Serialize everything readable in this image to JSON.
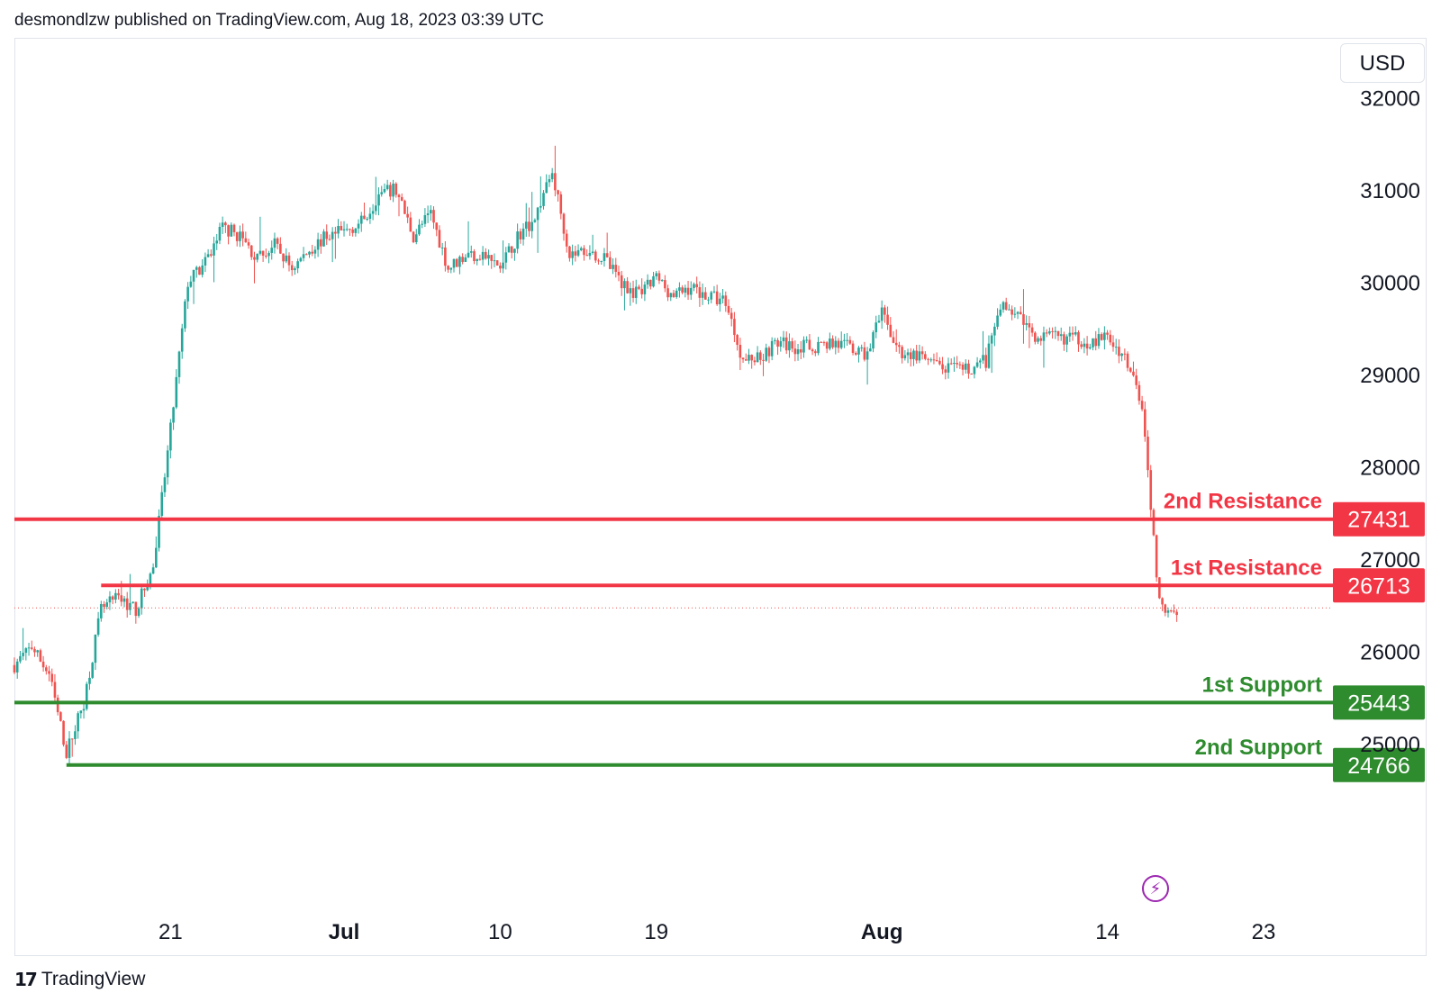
{
  "header": {
    "publisher_line": "desmondlzw published on TradingView.com, Aug 18, 2023 03:39 UTC"
  },
  "currency_button": "USD",
  "footer": {
    "logo_glyph": "17",
    "brand": "TradingView"
  },
  "bolt_glyph": "⚡",
  "colors": {
    "up": "#26a69a",
    "down": "#ef5350",
    "resistance": "#f23645",
    "support": "#2e8b2e",
    "grid": "#e0e3eb"
  },
  "chart_data": {
    "type": "candlestick",
    "title": "",
    "xlabel": "",
    "ylabel": "",
    "ylim": [
      23300,
      32650
    ],
    "y_ticks": [
      25000,
      26000,
      27000,
      28000,
      29000,
      30000,
      31000,
      32000
    ],
    "x_ticks": [
      {
        "label": "21",
        "date": "2023-06-21",
        "bold": false
      },
      {
        "label": "Jul",
        "date": "2023-07-01",
        "bold": true
      },
      {
        "label": "10",
        "date": "2023-07-10",
        "bold": false
      },
      {
        "label": "19",
        "date": "2023-07-19",
        "bold": false
      },
      {
        "label": "Aug",
        "date": "2023-08-01",
        "bold": true
      },
      {
        "label": "14",
        "date": "2023-08-14",
        "bold": false
      },
      {
        "label": "23",
        "date": "2023-08-23",
        "bold": false
      }
    ],
    "x_range": [
      "2023-06-12",
      "2023-08-27"
    ],
    "levels": [
      {
        "label": "2nd Resistance",
        "value": 27431,
        "kind": "resistance",
        "start": "2023-06-12"
      },
      {
        "label": "1st Resistance",
        "value": 26713,
        "kind": "resistance",
        "start": "2023-06-17"
      },
      {
        "label": "1st Support",
        "value": 25443,
        "kind": "support",
        "start": "2023-06-12"
      },
      {
        "label": "2nd Support",
        "value": 24766,
        "kind": "support",
        "start": "2023-06-15"
      }
    ],
    "current_price": 26470,
    "price_path": [
      [
        "2023-06-12",
        25850
      ],
      [
        "2023-06-13",
        26050
      ],
      [
        "2023-06-14",
        25750
      ],
      [
        "2023-06-15",
        24900
      ],
      [
        "2023-06-16",
        25450
      ],
      [
        "2023-06-17",
        26450
      ],
      [
        "2023-06-18",
        26580
      ],
      [
        "2023-06-19",
        26450
      ],
      [
        "2023-06-20",
        26900
      ],
      [
        "2023-06-21",
        28400
      ],
      [
        "2023-06-22",
        30000
      ],
      [
        "2023-06-23",
        30200
      ],
      [
        "2023-06-24",
        30600
      ],
      [
        "2023-06-25",
        30500
      ],
      [
        "2023-06-26",
        30250
      ],
      [
        "2023-06-27",
        30400
      ],
      [
        "2023-06-28",
        30150
      ],
      [
        "2023-06-29",
        30350
      ],
      [
        "2023-06-30",
        30500
      ],
      [
        "2023-07-01",
        30550
      ],
      [
        "2023-07-02",
        30650
      ],
      [
        "2023-07-03",
        30950
      ],
      [
        "2023-07-04",
        31000
      ],
      [
        "2023-07-05",
        30500
      ],
      [
        "2023-07-06",
        30750
      ],
      [
        "2023-07-07",
        30150
      ],
      [
        "2023-07-08",
        30300
      ],
      [
        "2023-07-09",
        30300
      ],
      [
        "2023-07-10",
        30150
      ],
      [
        "2023-07-11",
        30500
      ],
      [
        "2023-07-12",
        30700
      ],
      [
        "2023-07-13",
        31200
      ],
      [
        "2023-07-14",
        30300
      ],
      [
        "2023-07-15",
        30350
      ],
      [
        "2023-07-16",
        30250
      ],
      [
        "2023-07-17",
        30000
      ],
      [
        "2023-07-18",
        29850
      ],
      [
        "2023-07-19",
        30050
      ],
      [
        "2023-07-20",
        29850
      ],
      [
        "2023-07-21",
        29950
      ],
      [
        "2023-07-22",
        29850
      ],
      [
        "2023-07-23",
        29800
      ],
      [
        "2023-07-24",
        29150
      ],
      [
        "2023-07-25",
        29200
      ],
      [
        "2023-07-26",
        29350
      ],
      [
        "2023-07-27",
        29300
      ],
      [
        "2023-07-28",
        29300
      ],
      [
        "2023-07-29",
        29350
      ],
      [
        "2023-07-30",
        29300
      ],
      [
        "2023-07-31",
        29200
      ],
      [
        "2023-08-01",
        29650
      ],
      [
        "2023-08-02",
        29250
      ],
      [
        "2023-08-03",
        29200
      ],
      [
        "2023-08-04",
        29100
      ],
      [
        "2023-08-05",
        29050
      ],
      [
        "2023-08-06",
        29050
      ],
      [
        "2023-08-07",
        29150
      ],
      [
        "2023-08-08",
        29800
      ],
      [
        "2023-08-09",
        29600
      ],
      [
        "2023-08-10",
        29400
      ],
      [
        "2023-08-11",
        29400
      ],
      [
        "2023-08-12",
        29400
      ],
      [
        "2023-08-13",
        29350
      ],
      [
        "2023-08-14",
        29400
      ],
      [
        "2023-08-15",
        29200
      ],
      [
        "2023-08-16",
        28700
      ],
      [
        "2023-08-17",
        26500
      ],
      [
        "2023-08-18",
        26470
      ]
    ]
  }
}
